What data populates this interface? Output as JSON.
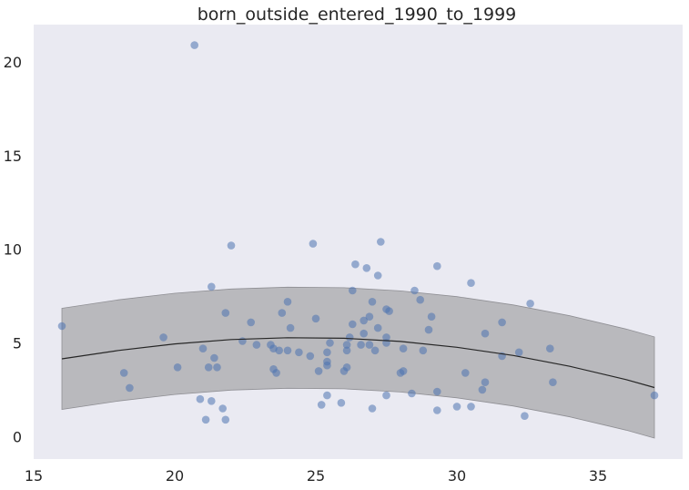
{
  "chart_data": {
    "type": "scatter",
    "title": "born_outside_entered_1990_to_1999",
    "xlabel": "",
    "ylabel": "",
    "xlim": [
      15,
      38
    ],
    "ylim": [
      -1.2,
      22
    ],
    "xticks": [
      15,
      20,
      25,
      30,
      35
    ],
    "yticks": [
      0,
      5,
      10,
      15,
      20
    ],
    "grid": false,
    "colors": {
      "background": "#eaeaf2",
      "points": "#4c72b0",
      "fit_line": "#262626",
      "band": "#b0b0b4"
    },
    "fit_curve": {
      "x": [
        16,
        18,
        20,
        22,
        24,
        26,
        28,
        30,
        32,
        34,
        36,
        37
      ],
      "y": [
        4.15,
        4.6,
        4.95,
        5.18,
        5.28,
        5.25,
        5.08,
        4.77,
        4.33,
        3.75,
        3.04,
        2.62
      ]
    },
    "band": {
      "x": [
        16,
        18,
        20,
        22,
        24,
        26,
        28,
        30,
        32,
        34,
        36,
        37
      ],
      "lower": [
        1.45,
        1.9,
        2.25,
        2.48,
        2.58,
        2.55,
        2.38,
        2.07,
        1.63,
        1.05,
        0.34,
        -0.08
      ],
      "upper": [
        6.85,
        7.3,
        7.65,
        7.88,
        7.98,
        7.95,
        7.78,
        7.47,
        7.03,
        6.45,
        5.74,
        5.32
      ]
    },
    "points": [
      {
        "x": 16.0,
        "y": 5.9
      },
      {
        "x": 18.2,
        "y": 3.4
      },
      {
        "x": 18.4,
        "y": 2.6
      },
      {
        "x": 19.6,
        "y": 5.3
      },
      {
        "x": 20.1,
        "y": 3.7
      },
      {
        "x": 20.7,
        "y": 20.9
      },
      {
        "x": 20.9,
        "y": 2.0
      },
      {
        "x": 21.0,
        "y": 4.7
      },
      {
        "x": 21.1,
        "y": 0.9
      },
      {
        "x": 21.2,
        "y": 3.7
      },
      {
        "x": 21.3,
        "y": 8.0
      },
      {
        "x": 21.3,
        "y": 1.9
      },
      {
        "x": 21.4,
        "y": 4.2
      },
      {
        "x": 21.5,
        "y": 3.7
      },
      {
        "x": 21.7,
        "y": 1.5
      },
      {
        "x": 21.8,
        "y": 6.6
      },
      {
        "x": 21.8,
        "y": 0.9
      },
      {
        "x": 22.0,
        "y": 10.2
      },
      {
        "x": 22.4,
        "y": 5.1
      },
      {
        "x": 22.7,
        "y": 6.1
      },
      {
        "x": 22.9,
        "y": 4.9
      },
      {
        "x": 23.4,
        "y": 4.9
      },
      {
        "x": 23.5,
        "y": 3.6
      },
      {
        "x": 23.5,
        "y": 4.7
      },
      {
        "x": 23.6,
        "y": 3.4
      },
      {
        "x": 23.7,
        "y": 4.6
      },
      {
        "x": 23.8,
        "y": 6.6
      },
      {
        "x": 24.0,
        "y": 7.2
      },
      {
        "x": 24.0,
        "y": 4.6
      },
      {
        "x": 24.1,
        "y": 5.8
      },
      {
        "x": 24.4,
        "y": 4.5
      },
      {
        "x": 24.8,
        "y": 4.3
      },
      {
        "x": 24.9,
        "y": 10.3
      },
      {
        "x": 25.0,
        "y": 6.3
      },
      {
        "x": 25.1,
        "y": 3.5
      },
      {
        "x": 25.2,
        "y": 1.7
      },
      {
        "x": 25.4,
        "y": 4.5
      },
      {
        "x": 25.4,
        "y": 3.8
      },
      {
        "x": 25.4,
        "y": 4.0
      },
      {
        "x": 25.4,
        "y": 2.2
      },
      {
        "x": 25.5,
        "y": 5.0
      },
      {
        "x": 25.9,
        "y": 1.8
      },
      {
        "x": 26.0,
        "y": 3.5
      },
      {
        "x": 26.1,
        "y": 4.6
      },
      {
        "x": 26.1,
        "y": 3.7
      },
      {
        "x": 26.1,
        "y": 4.9
      },
      {
        "x": 26.2,
        "y": 5.3
      },
      {
        "x": 26.3,
        "y": 7.8
      },
      {
        "x": 26.3,
        "y": 6.0
      },
      {
        "x": 26.4,
        "y": 9.2
      },
      {
        "x": 26.6,
        "y": 4.9
      },
      {
        "x": 26.7,
        "y": 5.5
      },
      {
        "x": 26.7,
        "y": 6.2
      },
      {
        "x": 26.8,
        "y": 9.0
      },
      {
        "x": 26.9,
        "y": 6.4
      },
      {
        "x": 26.9,
        "y": 4.9
      },
      {
        "x": 27.0,
        "y": 7.2
      },
      {
        "x": 27.0,
        "y": 1.5
      },
      {
        "x": 27.1,
        "y": 4.6
      },
      {
        "x": 27.2,
        "y": 8.6
      },
      {
        "x": 27.2,
        "y": 5.8
      },
      {
        "x": 27.3,
        "y": 10.4
      },
      {
        "x": 27.5,
        "y": 6.8
      },
      {
        "x": 27.5,
        "y": 5.3
      },
      {
        "x": 27.5,
        "y": 5.0
      },
      {
        "x": 27.5,
        "y": 2.2
      },
      {
        "x": 27.6,
        "y": 6.7
      },
      {
        "x": 28.0,
        "y": 3.4
      },
      {
        "x": 28.1,
        "y": 4.7
      },
      {
        "x": 28.1,
        "y": 3.5
      },
      {
        "x": 28.4,
        "y": 2.3
      },
      {
        "x": 28.5,
        "y": 7.8
      },
      {
        "x": 28.7,
        "y": 7.3
      },
      {
        "x": 28.8,
        "y": 4.6
      },
      {
        "x": 29.0,
        "y": 5.7
      },
      {
        "x": 29.1,
        "y": 6.4
      },
      {
        "x": 29.3,
        "y": 9.1
      },
      {
        "x": 29.3,
        "y": 2.4
      },
      {
        "x": 29.3,
        "y": 1.4
      },
      {
        "x": 30.0,
        "y": 1.6
      },
      {
        "x": 30.3,
        "y": 3.4
      },
      {
        "x": 30.5,
        "y": 8.2
      },
      {
        "x": 30.5,
        "y": 1.6
      },
      {
        "x": 30.9,
        "y": 2.5
      },
      {
        "x": 31.0,
        "y": 2.9
      },
      {
        "x": 31.0,
        "y": 5.5
      },
      {
        "x": 31.6,
        "y": 4.3
      },
      {
        "x": 31.6,
        "y": 6.1
      },
      {
        "x": 32.2,
        "y": 4.5
      },
      {
        "x": 32.4,
        "y": 1.1
      },
      {
        "x": 32.6,
        "y": 7.1
      },
      {
        "x": 33.3,
        "y": 4.7
      },
      {
        "x": 33.4,
        "y": 2.9
      },
      {
        "x": 37.0,
        "y": 2.2
      }
    ]
  }
}
